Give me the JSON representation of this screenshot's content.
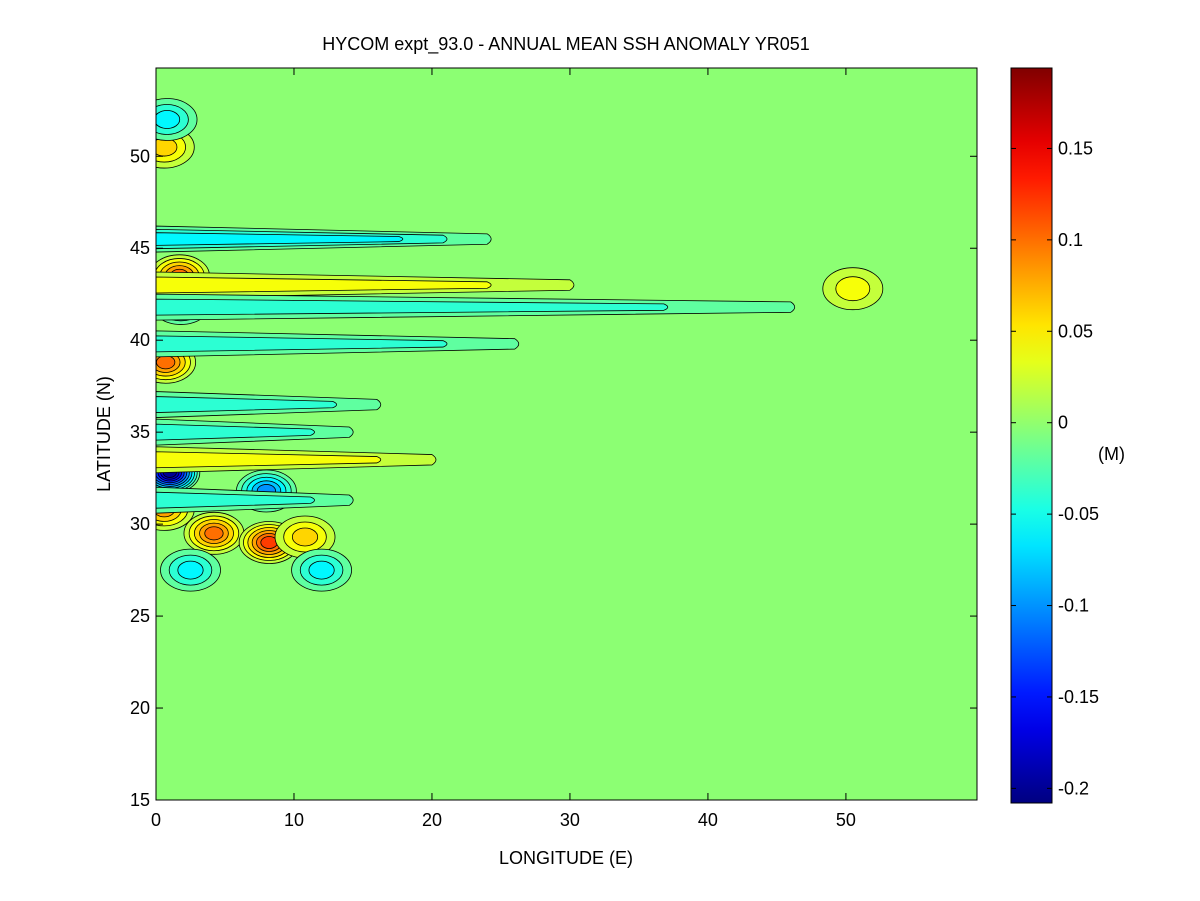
{
  "chart_data": {
    "type": "heatmap",
    "title": "HYCOM expt_93.0 - ANNUAL MEAN SSH ANOMALY YR051",
    "xlabel": "LONGITUDE (E)",
    "ylabel": "LATITUDE (N)",
    "xlim": [
      0,
      59.5
    ],
    "ylim": [
      15,
      54.8
    ],
    "x_ticks": [
      0,
      10,
      20,
      30,
      40,
      50
    ],
    "y_ticks": [
      15,
      20,
      25,
      30,
      35,
      40,
      45,
      50
    ],
    "colorbar": {
      "label": "(M)",
      "colormap": "jet",
      "range": [
        -0.208,
        0.194
      ],
      "ticks": [
        -0.2,
        -0.15,
        -0.1,
        -0.05,
        0,
        0.05,
        0.1,
        0.15
      ],
      "tick_labels": [
        "-0.2",
        "-0.15",
        "-0.1",
        "-0.05",
        "0",
        "0.05",
        "0.1",
        "0.15"
      ]
    },
    "background_value": 0,
    "contour_interval": 0.02,
    "features": [
      {
        "kind": "eddy",
        "lon": 1.0,
        "lat": 32.8,
        "value": -0.2
      },
      {
        "kind": "eddy",
        "lon": 0.6,
        "lat": 30.8,
        "value": 0.08
      },
      {
        "kind": "eddy",
        "lon": 4.2,
        "lat": 29.5,
        "value": 0.09
      },
      {
        "kind": "eddy",
        "lon": 8.2,
        "lat": 29.0,
        "value": 0.12
      },
      {
        "kind": "eddy",
        "lon": 10.8,
        "lat": 29.3,
        "value": 0.06
      },
      {
        "kind": "eddy",
        "lon": 8.0,
        "lat": 31.8,
        "value": -0.09
      },
      {
        "kind": "eddy",
        "lon": 1.8,
        "lat": 42.0,
        "value": -0.1
      },
      {
        "kind": "eddy",
        "lon": 1.7,
        "lat": 43.5,
        "value": 0.09
      },
      {
        "kind": "eddy",
        "lon": 0.7,
        "lat": 38.8,
        "value": 0.1
      },
      {
        "kind": "eddy",
        "lon": 0.6,
        "lat": 50.5,
        "value": 0.06
      },
      {
        "kind": "eddy",
        "lon": 0.8,
        "lat": 52.0,
        "value": -0.06
      },
      {
        "kind": "eddy",
        "lon": 2.5,
        "lat": 27.5,
        "value": -0.06
      },
      {
        "kind": "eddy",
        "lon": 12.0,
        "lat": 27.5,
        "value": -0.06
      },
      {
        "kind": "band",
        "lat": 45.5,
        "lon_end": 24,
        "value": -0.05
      },
      {
        "kind": "band",
        "lat": 43.0,
        "lon_end": 30,
        "value": 0.035
      },
      {
        "kind": "band",
        "lat": 41.8,
        "lon_end": 46,
        "value": -0.035
      },
      {
        "kind": "band",
        "lat": 39.8,
        "lon_end": 26,
        "value": -0.03
      },
      {
        "kind": "band",
        "lat": 36.5,
        "lon_end": 16,
        "value": -0.04
      },
      {
        "kind": "band",
        "lat": 33.5,
        "lon_end": 20,
        "value": 0.03
      },
      {
        "kind": "band",
        "lat": 35.0,
        "lon_end": 14,
        "value": -0.045
      },
      {
        "kind": "band",
        "lat": 31.3,
        "lon_end": 14,
        "value": -0.035
      },
      {
        "kind": "eddy",
        "lon": 50.5,
        "lat": 42.8,
        "value": 0.03
      }
    ]
  }
}
